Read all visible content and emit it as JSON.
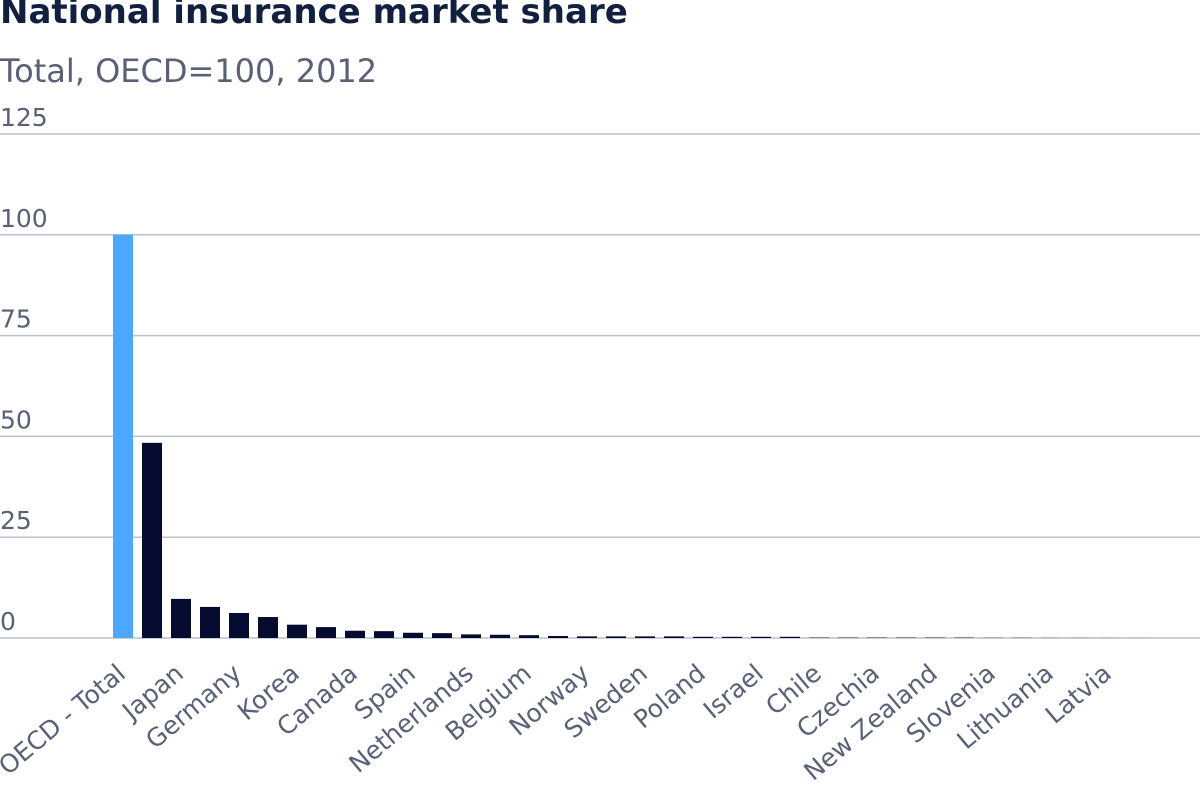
{
  "chart_data": {
    "type": "bar",
    "title": "National insurance market share",
    "subtitle": "Total, OECD=100, 2012",
    "xlabel": "",
    "ylabel": "",
    "ylim": [
      0,
      125
    ],
    "yticks": [
      0,
      25,
      50,
      75,
      100,
      125
    ],
    "grid": true,
    "colors": {
      "highlight": "#4da6ff",
      "default": "#050a30",
      "grid": "#b8c1cc"
    },
    "categories": [
      "OECD - Total",
      "",
      "Japan",
      "",
      "Germany",
      "",
      "Korea",
      "",
      "Canada",
      "",
      "Spain",
      "",
      "Netherlands",
      "",
      "Belgium",
      "",
      "Norway",
      "",
      "Sweden",
      "",
      "Poland",
      "",
      "Israel",
      "",
      "Chile",
      "",
      "Czechia",
      "",
      "New Zealand",
      "",
      "Slovenia",
      "",
      "Lithuania",
      "",
      "Latvia",
      ""
    ],
    "values": [
      100,
      48.4,
      9.7,
      7.7,
      6.2,
      5.2,
      3.3,
      2.7,
      1.8,
      1.7,
      1.3,
      1.2,
      0.9,
      0.8,
      0.7,
      0.5,
      0.4,
      0.4,
      0.4,
      0.4,
      0.3,
      0.3,
      0.3,
      0.3,
      0.1,
      0.1,
      0.1,
      0.1,
      0.1,
      0.1,
      0.05,
      0.05,
      0.03,
      0.03,
      0.02,
      0.01
    ],
    "highlight_index": 0
  }
}
